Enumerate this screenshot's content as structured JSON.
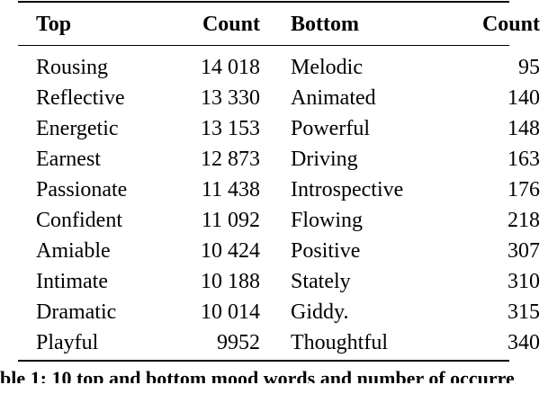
{
  "table": {
    "headers": {
      "top": "Top",
      "top_count": "Count",
      "bottom": "Bottom",
      "bottom_count": "Count"
    },
    "rows": [
      {
        "top": "Rousing",
        "top_count": "14 018",
        "bottom": "Melodic",
        "bottom_count": "95"
      },
      {
        "top": "Reflective",
        "top_count": "13 330",
        "bottom": "Animated",
        "bottom_count": "140"
      },
      {
        "top": "Energetic",
        "top_count": "13 153",
        "bottom": "Powerful",
        "bottom_count": "148"
      },
      {
        "top": "Earnest",
        "top_count": "12 873",
        "bottom": "Driving",
        "bottom_count": "163"
      },
      {
        "top": "Passionate",
        "top_count": "11 438",
        "bottom": "Introspective",
        "bottom_count": "176"
      },
      {
        "top": "Confident",
        "top_count": "11 092",
        "bottom": "Flowing",
        "bottom_count": "218"
      },
      {
        "top": "Amiable",
        "top_count": "10 424",
        "bottom": "Positive",
        "bottom_count": "307"
      },
      {
        "top": "Intimate",
        "top_count": "10 188",
        "bottom": "Stately",
        "bottom_count": "310"
      },
      {
        "top": "Dramatic",
        "top_count": "10 014",
        "bottom": "Giddy.",
        "bottom_count": "315"
      },
      {
        "top": "Playful",
        "top_count": "9952",
        "bottom": "Thoughtful",
        "bottom_count": "340"
      }
    ]
  },
  "caption": {
    "text": "ble 1: 10 top and bottom mood words and number of occurre"
  }
}
